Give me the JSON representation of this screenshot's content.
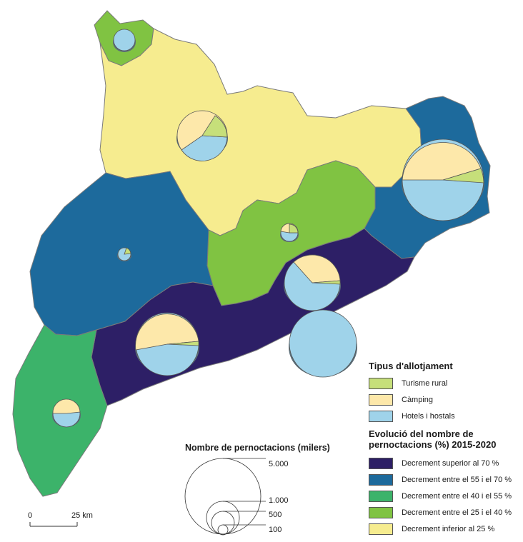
{
  "colors": {
    "superior_70": "#2d1f66",
    "entre_55_70": "#1d6a9c",
    "entre_40_55": "#3cb36a",
    "entre_25_40": "#80c342",
    "inferior_25": "#f6ec8f",
    "turisme_rural": "#c6df7a",
    "camping": "#fde8aa",
    "hotels": "#9fd3ea",
    "border": "#7a7a7a"
  },
  "accommodation_legend": {
    "title": "Tipus d'allotjament",
    "items": [
      {
        "label": "Turisme rural",
        "color_key": "turisme_rural"
      },
      {
        "label": "Càmping",
        "color_key": "camping"
      },
      {
        "label": "Hotels i hostals",
        "color_key": "hotels"
      }
    ]
  },
  "evolution_legend": {
    "title_line1": "Evolució del nombre de",
    "title_line2": "pernoctacions (%) 2015-2020",
    "items": [
      {
        "label": "Decrement superior al 70 %",
        "color_key": "superior_70"
      },
      {
        "label": "Decrement entre el 55 i el 70 %",
        "color_key": "entre_55_70"
      },
      {
        "label": "Decrement entre el 40 i el 55 %",
        "color_key": "entre_40_55"
      },
      {
        "label": "Decrement entre el 25 i el 40 %",
        "color_key": "entre_25_40"
      },
      {
        "label": "Decrement inferior al 25 %",
        "color_key": "inferior_25"
      }
    ]
  },
  "size_legend": {
    "title": "Nombre de pernoctacions (milers)",
    "values": [
      "5.000",
      "1.000",
      "500",
      "100"
    ]
  },
  "scale_bar": {
    "start_label": "0",
    "end_label": "25 km"
  }
}
